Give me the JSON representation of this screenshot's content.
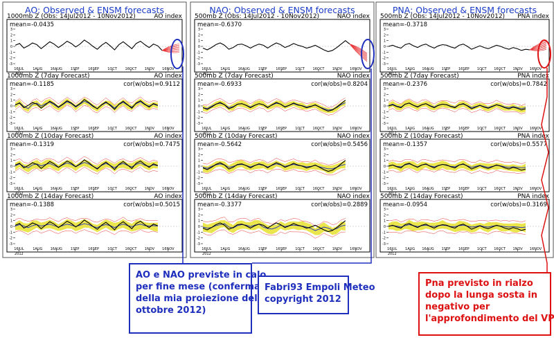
{
  "columns": [
    {
      "title": "AO: Observed & ENSM forecasts",
      "panels": [
        {
          "left_label": "1000mb Z (Obs: 14Jul2012 - 10Nov2012)",
          "right_label": "AO index",
          "mean": "mean=-0.0435",
          "cor": ""
        },
        {
          "left_label": "1000mb Z (7day Forecast)",
          "right_label": "AO index",
          "mean": "mean=-0.1185",
          "cor": "cor(w/obs)=0.9112"
        },
        {
          "left_label": "1000mb Z (10day Forecast)",
          "right_label": "AO index",
          "mean": "mean=-0.1319",
          "cor": "cor(w/obs)=0.7475"
        },
        {
          "left_label": "1000mb Z (14day Forecast)",
          "right_label": "AO index",
          "mean": "mean=-0.1388",
          "cor": "cor(w/obs)=0.5015"
        }
      ]
    },
    {
      "title": "NAO: Observed & ENSM forecasts",
      "panels": [
        {
          "left_label": "500mb Z (Obs: 14Jul2012 - 10Nov2012)",
          "right_label": "NAO index",
          "mean": "mean=-0.6370",
          "cor": ""
        },
        {
          "left_label": "500mb Z (7day Forecast)",
          "right_label": "NAO index",
          "mean": "mean=-0.6933",
          "cor": "cor(w/obs)=0.8204"
        },
        {
          "left_label": "500mb Z (10day Forecast)",
          "right_label": "NAO index",
          "mean": "mean=-0.5642",
          "cor": "cor(w/obs)=0.5456"
        },
        {
          "left_label": "500mb Z (14day Forecast)",
          "right_label": "NAO index",
          "mean": "mean=-0.3377",
          "cor": "cor(w/obs)=0.2889"
        }
      ]
    },
    {
      "title": "PNA: Observed & ENSM forecasts",
      "panels": [
        {
          "left_label": "500mb Z (Obs: 14Jul2012 - 10Nov2012)",
          "right_label": "PNA index",
          "mean": "mean=-0.3718",
          "cor": ""
        },
        {
          "left_label": "500mb Z (7day Forecast)",
          "right_label": "PNA index",
          "mean": "mean=-0.2376",
          "cor": "cor(w/obs)=0.7842"
        },
        {
          "left_label": "500mb Z (10day Forecast)",
          "right_label": "PNA index",
          "mean": "mean=-0.1357",
          "cor": "cor(w/obs)=0.5577"
        },
        {
          "left_label": "500mb Z (14day Forecast)",
          "right_label": "PNA index",
          "mean": "mean=-0.0954",
          "cor": "cor(w/obs)=0.3169"
        }
      ]
    }
  ],
  "x_ticks": [
    "16JUL\n2012",
    "1AUG",
    "16AUG",
    "1SEP",
    "16SEP",
    "1OCT",
    "16OCT",
    "1NOV",
    "16NOV"
  ],
  "y_ticks": [
    "3",
    "2",
    "1",
    "0",
    "-1",
    "-2",
    "-3"
  ],
  "annotations": {
    "blue_1": [
      "AO e NAO previste in calo",
      "per fine mese (conferma",
      "della mia proiezione del 30",
      "ottobre 2012)"
    ],
    "blue_2": [
      "Fabri93 Empoli Meteo",
      "copyright 2012"
    ],
    "red": [
      "Pna previsto in rialzo",
      "dopo la lunga sosta in",
      "negativo per",
      "l'approfondimento del VP"
    ]
  },
  "colors": {
    "title_blue": "#1a3cc8",
    "frame": "#000000",
    "observed_line": "#000000",
    "forecast_line": "#1f2fbd",
    "ensemble_band": "#e8e23a",
    "ensemble_members": "#e8373a",
    "annotation_blue": "#1f2fbd",
    "annotation_red": "#dd1111"
  },
  "chart_data": [
    {
      "type": "line",
      "title": "AO: Observed & ENSM forecasts",
      "x_range": [
        "14Jul2012",
        "30Nov2012"
      ],
      "ylim": [
        -3,
        3
      ],
      "observed": [
        0.2,
        0.5,
        -0.3,
        0.1,
        0.6,
        0.3,
        -0.4,
        0.2,
        0.8,
        0.4,
        -0.2,
        0.3,
        0.9,
        0.5,
        -0.1,
        0.4,
        1.1,
        0.6,
        0.0,
        -0.5,
        0.2,
        0.7,
        0.1,
        -0.6,
        0.3,
        0.8,
        0.2,
        -0.4,
        0.5,
        0.9,
        0.3,
        -0.2,
        0.4,
        0.1,
        -0.7,
        0.2,
        0.6,
        0.0,
        -0.3
      ],
      "forecast_7day": [
        0.1,
        0.6,
        -0.2,
        -0.6,
        0.3,
        0.5,
        -0.1,
        0.4,
        0.7,
        0.2,
        -0.4,
        0.2,
        0.8,
        0.4,
        -0.3,
        0.3,
        0.9,
        0.5,
        -0.2,
        -0.6,
        0.1,
        0.6,
        0.2,
        -0.5,
        0.2,
        0.7,
        0.1,
        -0.3,
        0.4,
        0.8,
        0.2,
        -0.1,
        0.3,
        0.0
      ],
      "forecast_10day": [
        0.0,
        0.4,
        -0.1,
        -0.4,
        0.2,
        0.4,
        0.0,
        0.3,
        0.5,
        0.1,
        -0.3,
        0.2,
        0.6,
        0.3,
        -0.2,
        0.3,
        0.7,
        0.4,
        -0.1,
        -0.5,
        0.1,
        0.5,
        0.1,
        -0.4,
        0.2,
        0.5,
        0.1,
        -0.2,
        0.3,
        0.6,
        0.1,
        -0.1,
        0.2,
        0.0
      ],
      "forecast_14day": [
        0.0,
        0.3,
        0.0,
        -0.3,
        0.1,
        0.3,
        0.0,
        0.2,
        0.4,
        0.1,
        -0.2,
        0.1,
        0.4,
        0.2,
        -0.1,
        0.2,
        0.5,
        0.3,
        -0.1,
        -0.3,
        0.1,
        0.3,
        0.1,
        -0.3,
        0.1,
        0.4,
        0.1,
        -0.1,
        0.2,
        0.4,
        0.1,
        0.0,
        0.1,
        0.0
      ]
    },
    {
      "type": "line",
      "title": "NAO: Observed & ENSM forecasts",
      "x_range": [
        "14Jul2012",
        "30Nov2012"
      ],
      "ylim": [
        -3,
        3
      ],
      "observed": [
        -0.3,
        -0.6,
        -0.2,
        0.3,
        0.6,
        0.2,
        -0.5,
        -0.2,
        0.3,
        0.4,
        0.1,
        -0.3,
        0.1,
        0.4,
        0.2,
        -0.3,
        0.2,
        0.6,
        0.3,
        -0.2,
        0.1,
        0.5,
        0.2,
        0.0,
        -0.3,
        -0.1,
        0.2,
        -0.2,
        -0.6,
        -0.9,
        -0.7,
        -0.2,
        0.4,
        1.0,
        0.4,
        -0.5,
        -1.0,
        -1.5,
        -1.9
      ],
      "forecast_7day": [
        -0.4,
        -0.6,
        -0.1,
        0.3,
        0.5,
        0.2,
        -0.4,
        -0.2,
        0.3,
        0.4,
        0.1,
        -0.3,
        0.1,
        0.4,
        0.2,
        -0.3,
        0.1,
        0.5,
        0.3,
        -0.2,
        0.1,
        0.4,
        0.1,
        0.0,
        -0.3,
        -0.1,
        0.1,
        -0.3,
        -0.6,
        -0.9,
        -0.8,
        -0.4,
        0.2,
        0.6
      ],
      "forecast_10day": [
        -0.3,
        -0.5,
        -0.1,
        0.2,
        0.4,
        0.2,
        -0.3,
        -0.1,
        0.2,
        0.3,
        0.1,
        -0.2,
        0.1,
        0.3,
        0.1,
        -0.2,
        0.1,
        0.4,
        0.2,
        -0.1,
        0.1,
        0.3,
        0.1,
        0.0,
        -0.2,
        -0.1,
        0.1,
        -0.2,
        -0.4,
        -0.6,
        -0.6,
        -0.3,
        0.1,
        0.3
      ],
      "forecast_14day": [
        -0.2,
        -0.4,
        -0.3,
        0.1,
        0.3,
        0.5,
        -0.2,
        -0.4,
        0.1,
        0.3,
        0.2,
        -0.1,
        0.2,
        0.4,
        -0.2,
        -0.5,
        -0.6,
        -0.3,
        0.2,
        -0.1,
        0.1,
        0.2,
        0.1,
        0.0,
        -0.2,
        -0.5,
        -0.9,
        -0.6,
        -0.2,
        -0.4,
        -0.8,
        -0.5,
        0.0,
        0.2
      ]
    },
    {
      "type": "line",
      "title": "PNA: Observed & ENSM forecasts",
      "x_range": [
        "14Jul2012",
        "30Nov2012"
      ],
      "ylim": [
        -3,
        3
      ],
      "observed": [
        0.0,
        0.2,
        -0.1,
        -0.3,
        0.3,
        0.5,
        0.1,
        -0.2,
        0.2,
        0.4,
        0.0,
        -0.3,
        0.1,
        0.3,
        0.2,
        -0.1,
        -0.3,
        0.2,
        0.4,
        0.0,
        -0.5,
        -0.2,
        0.1,
        -0.2,
        -0.4,
        -0.1,
        0.2,
        0.0,
        -0.3,
        -0.5,
        -0.2,
        -0.4,
        -0.7,
        -0.5,
        -0.6,
        -0.4,
        -0.1,
        0.1,
        0.2
      ],
      "forecast_7day": [
        0.0,
        0.3,
        -0.1,
        -0.3,
        0.3,
        0.5,
        0.1,
        -0.2,
        0.2,
        0.4,
        0.0,
        -0.3,
        0.1,
        0.3,
        0.2,
        -0.1,
        -0.3,
        0.2,
        0.3,
        0.0,
        -0.4,
        -0.2,
        0.1,
        -0.2,
        -0.4,
        -0.1,
        0.2,
        0.0,
        -0.3,
        -0.4,
        -0.2,
        -0.4,
        -0.6,
        -0.4
      ],
      "forecast_10day": [
        0.0,
        0.2,
        -0.1,
        -0.2,
        0.2,
        0.4,
        0.1,
        -0.2,
        0.2,
        0.3,
        0.0,
        -0.2,
        0.1,
        0.3,
        0.1,
        -0.1,
        -0.2,
        0.2,
        0.3,
        0.0,
        -0.3,
        -0.1,
        0.1,
        -0.1,
        -0.3,
        -0.1,
        0.1,
        0.0,
        -0.2,
        -0.3,
        -0.2,
        -0.3,
        -0.4,
        -0.3
      ],
      "forecast_14day": [
        0.0,
        0.1,
        0.0,
        -0.2,
        0.1,
        0.3,
        0.1,
        -0.1,
        0.1,
        0.2,
        0.0,
        -0.1,
        0.1,
        0.2,
        0.1,
        -0.1,
        -0.1,
        0.1,
        0.2,
        0.0,
        -0.2,
        -0.1,
        0.1,
        -0.1,
        -0.2,
        0.0,
        0.1,
        0.0,
        -0.1,
        -0.2,
        -0.1,
        -0.2,
        -0.3,
        -0.2
      ]
    }
  ]
}
